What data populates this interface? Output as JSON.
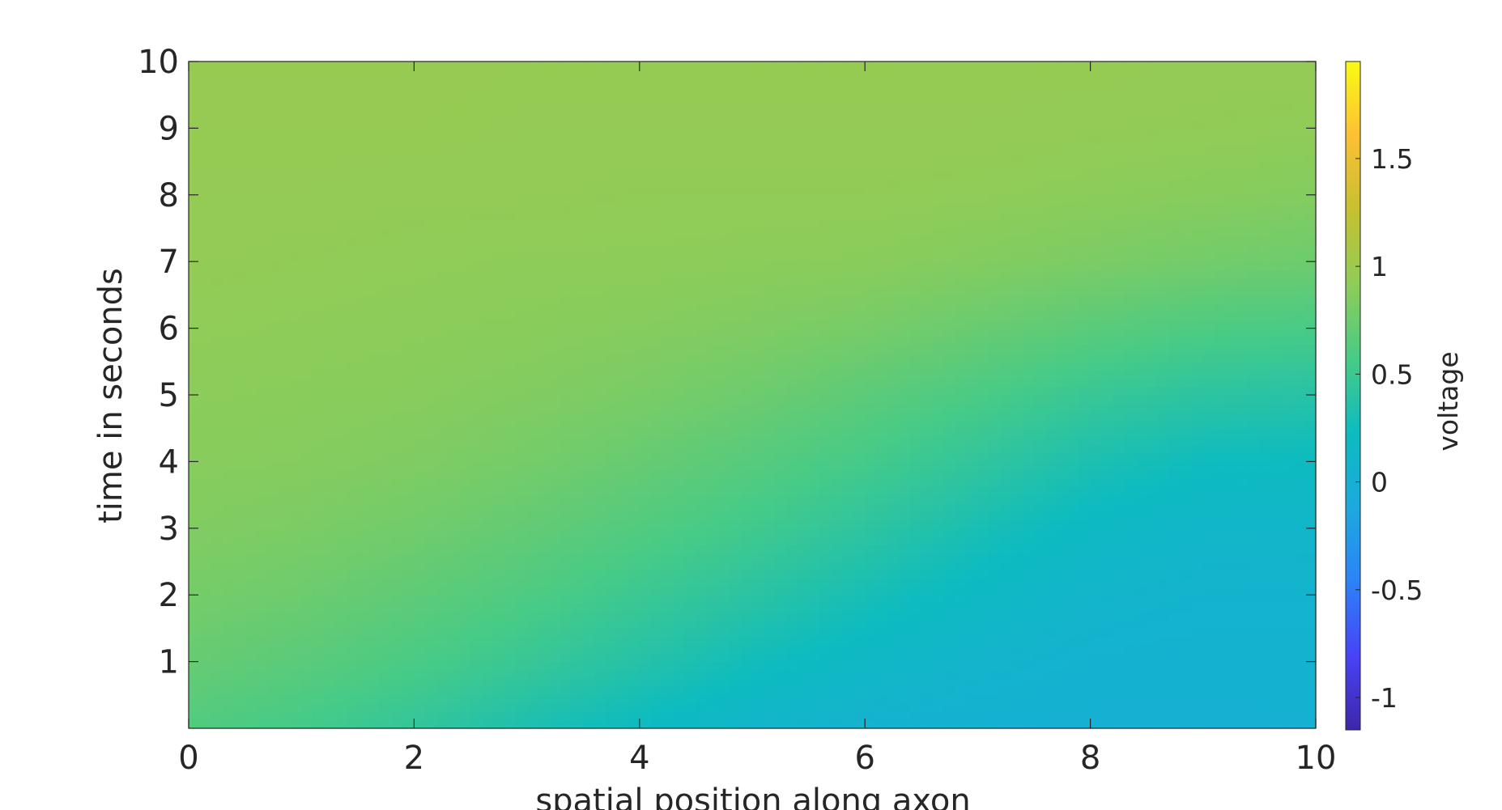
{
  "chart_data": {
    "type": "heatmap",
    "title": "",
    "xlabel": "spatial position along axon",
    "ylabel": "time in seconds",
    "xlim": [
      0,
      10
    ],
    "ylim": [
      0,
      10
    ],
    "xticks": [
      "0",
      "2",
      "4",
      "6",
      "8",
      "10"
    ],
    "yticks": [
      "1",
      "2",
      "3",
      "4",
      "5",
      "6",
      "7",
      "8",
      "9",
      "10"
    ],
    "colorbar": {
      "label": "voltage",
      "range": [
        -1.15,
        1.95
      ],
      "ticks": [
        "-1",
        "-0.5",
        "0",
        "0.5",
        "1",
        "1.5"
      ],
      "colormap": [
        "#3e26a8",
        "#4743f7",
        "#2c83f7",
        "#1ca9df",
        "#0dbbc0",
        "#48cb86",
        "#8fcc58",
        "#c7c02f",
        "#fcc034",
        "#f9fb14"
      ]
    },
    "grid": false,
    "value_description": "voltage(x, t) on 0..10 x 0..10 grid, sampled every 1 unit",
    "z_samples": {
      "x": [
        0,
        1,
        2,
        3,
        4,
        5,
        6,
        7,
        8,
        9,
        10
      ],
      "t": [
        0,
        1,
        2,
        3,
        4,
        5,
        6,
        7,
        8,
        9,
        10
      ],
      "values": [
        [
          0.62,
          0.55,
          0.45,
          0.32,
          0.22,
          0.12,
          0.06,
          0.03,
          0.02,
          0.02,
          0.03
        ],
        [
          0.72,
          0.66,
          0.58,
          0.48,
          0.37,
          0.26,
          0.17,
          0.1,
          0.06,
          0.05,
          0.05
        ],
        [
          0.79,
          0.75,
          0.68,
          0.6,
          0.5,
          0.4,
          0.29,
          0.19,
          0.11,
          0.08,
          0.08
        ],
        [
          0.85,
          0.82,
          0.77,
          0.7,
          0.62,
          0.53,
          0.42,
          0.3,
          0.19,
          0.13,
          0.12
        ],
        [
          0.88,
          0.87,
          0.84,
          0.79,
          0.72,
          0.64,
          0.55,
          0.44,
          0.32,
          0.24,
          0.22
        ],
        [
          0.9,
          0.89,
          0.88,
          0.85,
          0.81,
          0.75,
          0.67,
          0.58,
          0.48,
          0.41,
          0.38
        ],
        [
          0.92,
          0.91,
          0.9,
          0.89,
          0.87,
          0.84,
          0.8,
          0.73,
          0.66,
          0.6,
          0.57
        ],
        [
          0.94,
          0.93,
          0.92,
          0.91,
          0.91,
          0.9,
          0.89,
          0.86,
          0.82,
          0.78,
          0.75
        ],
        [
          0.95,
          0.95,
          0.94,
          0.94,
          0.93,
          0.93,
          0.93,
          0.92,
          0.9,
          0.88,
          0.86
        ],
        [
          0.96,
          0.96,
          0.96,
          0.95,
          0.95,
          0.95,
          0.95,
          0.95,
          0.94,
          0.93,
          0.92
        ],
        [
          0.97,
          0.97,
          0.97,
          0.96,
          0.96,
          0.96,
          0.96,
          0.96,
          0.96,
          0.95,
          0.95
        ]
      ]
    }
  }
}
